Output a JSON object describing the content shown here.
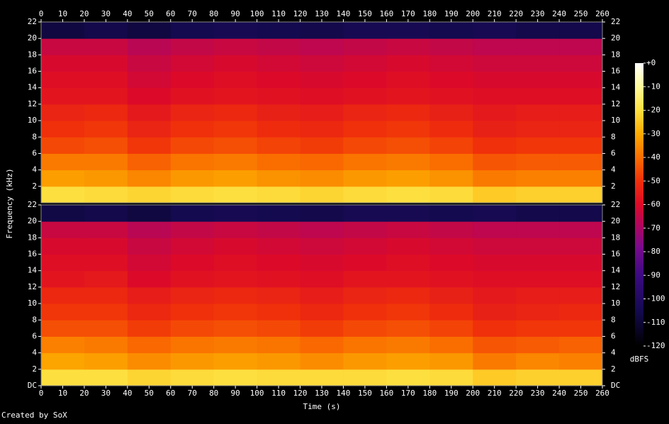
{
  "chart_data": {
    "type": "spectrogram",
    "xlabel": "Time (s)",
    "ylabel": "Frequency (kHz)",
    "footer": "Created by SoX",
    "xlim": [
      0,
      260
    ],
    "xticks": [
      0,
      10,
      20,
      30,
      40,
      50,
      60,
      70,
      80,
      90,
      100,
      110,
      120,
      130,
      140,
      150,
      160,
      170,
      180,
      190,
      200,
      210,
      220,
      230,
      240,
      250,
      260
    ],
    "ylim": [
      0,
      22
    ],
    "xbins": [
      0,
      20,
      40,
      60,
      80,
      100,
      120,
      140,
      160,
      180,
      200,
      220,
      240,
      260
    ],
    "ybins": [
      0,
      2,
      4,
      6,
      8,
      10,
      12,
      14,
      16,
      18,
      20,
      22
    ],
    "channels": [
      {
        "yticks": [
          2,
          4,
          6,
          8,
          10,
          12,
          14,
          16,
          18,
          20,
          22
        ],
        "values": [
          [
            -20,
            -21,
            -22,
            -21,
            -20,
            -21,
            -22,
            -21,
            -20,
            -21,
            -24,
            -23,
            -23
          ],
          [
            -32,
            -33,
            -36,
            -33,
            -32,
            -34,
            -35,
            -33,
            -32,
            -34,
            -38,
            -37,
            -37
          ],
          [
            -38,
            -38,
            -42,
            -39,
            -38,
            -40,
            -41,
            -39,
            -38,
            -40,
            -44,
            -43,
            -43
          ],
          [
            -46,
            -45,
            -49,
            -46,
            -45,
            -47,
            -48,
            -46,
            -45,
            -47,
            -50,
            -49,
            -49
          ],
          [
            -50,
            -49,
            -53,
            -50,
            -49,
            -51,
            -52,
            -50,
            -49,
            -51,
            -54,
            -53,
            -53
          ],
          [
            -53,
            -52,
            -56,
            -53,
            -52,
            -54,
            -55,
            -53,
            -52,
            -54,
            -56,
            -55,
            -55
          ],
          [
            -57,
            -57,
            -60,
            -58,
            -57,
            -58,
            -59,
            -58,
            -57,
            -58,
            -59,
            -59,
            -59
          ],
          [
            -59,
            -59,
            -62,
            -60,
            -59,
            -60,
            -61,
            -60,
            -59,
            -60,
            -61,
            -61,
            -61
          ],
          [
            -61,
            -61,
            -64,
            -62,
            -61,
            -62,
            -63,
            -62,
            -61,
            -62,
            -63,
            -63,
            -63
          ],
          [
            -64,
            -64,
            -67,
            -65,
            -64,
            -65,
            -66,
            -65,
            -64,
            -65,
            -66,
            -66,
            -66
          ],
          [
            -108,
            -106,
            -108,
            -105,
            -104,
            -105,
            -106,
            -104,
            -104,
            -105,
            -104,
            -106,
            -106
          ]
        ]
      },
      {
        "yticks": [
          {
            "value": 0,
            "label": "DC"
          },
          2,
          4,
          6,
          8,
          10,
          12,
          14,
          16,
          18,
          20,
          22
        ],
        "values": [
          [
            -20,
            -20,
            -22,
            -21,
            -20,
            -21,
            -21,
            -21,
            -20,
            -21,
            -24,
            -23,
            -23
          ],
          [
            -31,
            -32,
            -35,
            -33,
            -32,
            -33,
            -35,
            -33,
            -32,
            -33,
            -38,
            -36,
            -37
          ],
          [
            -37,
            -38,
            -41,
            -39,
            -38,
            -39,
            -41,
            -39,
            -38,
            -40,
            -44,
            -43,
            -42
          ],
          [
            -45,
            -45,
            -48,
            -46,
            -45,
            -46,
            -48,
            -46,
            -45,
            -47,
            -50,
            -49,
            -49
          ],
          [
            -49,
            -49,
            -52,
            -50,
            -49,
            -50,
            -52,
            -50,
            -49,
            -51,
            -54,
            -53,
            -52
          ],
          [
            -52,
            -52,
            -55,
            -53,
            -52,
            -53,
            -55,
            -53,
            -52,
            -54,
            -56,
            -55,
            -55
          ],
          [
            -57,
            -56,
            -60,
            -58,
            -57,
            -58,
            -59,
            -57,
            -57,
            -58,
            -59,
            -59,
            -59
          ],
          [
            -59,
            -59,
            -62,
            -60,
            -59,
            -60,
            -61,
            -60,
            -59,
            -60,
            -61,
            -61,
            -61
          ],
          [
            -61,
            -61,
            -64,
            -62,
            -61,
            -62,
            -63,
            -62,
            -61,
            -62,
            -63,
            -63,
            -63
          ],
          [
            -64,
            -64,
            -67,
            -65,
            -64,
            -65,
            -66,
            -65,
            -64,
            -65,
            -66,
            -66,
            -66
          ],
          [
            -107,
            -106,
            -108,
            -105,
            -104,
            -105,
            -106,
            -104,
            -104,
            -105,
            -104,
            -106,
            -106
          ]
        ]
      }
    ],
    "colorbar": {
      "label": "dBFS",
      "lim": [
        -120,
        0
      ],
      "ticks": [
        {
          "value": 0,
          "label": "+0"
        },
        -10,
        -20,
        -30,
        -40,
        -50,
        -60,
        -70,
        -80,
        -90,
        -100,
        -110,
        -120
      ]
    },
    "colormap": [
      [
        -120,
        "#000000"
      ],
      [
        -105,
        "#140a50"
      ],
      [
        -90,
        "#3c0a82"
      ],
      [
        -78,
        "#7a0a8c"
      ],
      [
        -68,
        "#b4065a"
      ],
      [
        -60,
        "#dc0a28"
      ],
      [
        -50,
        "#f0300a"
      ],
      [
        -40,
        "#fa6e00"
      ],
      [
        -30,
        "#fcaa00"
      ],
      [
        -20,
        "#fde040"
      ],
      [
        -10,
        "#fffa9a"
      ],
      [
        0,
        "#ffffff"
      ]
    ]
  }
}
